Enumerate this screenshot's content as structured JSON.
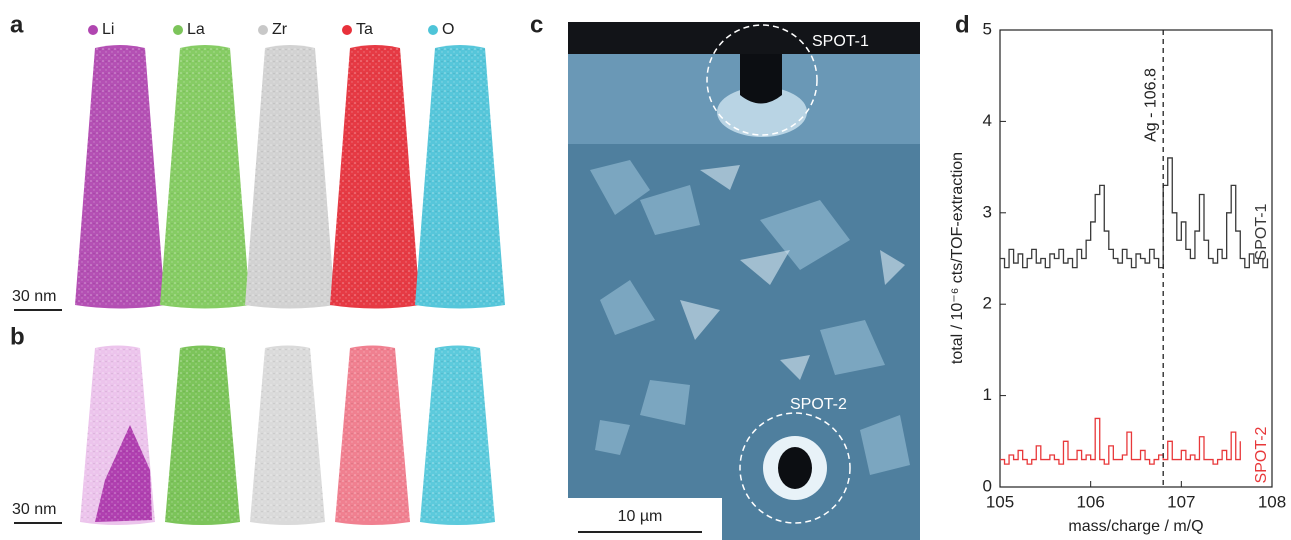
{
  "panels": {
    "a": {
      "label": "a",
      "elements": [
        "Li",
        "La",
        "Zr",
        "Ta",
        "O"
      ],
      "scale_bar": "30 nm"
    },
    "b": {
      "label": "b",
      "scale_bar": "30 nm"
    },
    "c": {
      "label": "c",
      "spots": [
        "SPOT-1",
        "SPOT-2"
      ],
      "scale_bar": "10 µm"
    },
    "d": {
      "label": "d"
    }
  },
  "chart_data": {
    "type": "line",
    "x_label": "mass/charge / m/Q",
    "y_label": "total / 10⁻⁶ cts/TOF-extraction",
    "annotation": "Ag - 106.8",
    "marker_x": 106.8,
    "x": [
      105.0,
      105.05,
      105.1,
      105.15,
      105.2,
      105.25,
      105.3,
      105.35,
      105.4,
      105.45,
      105.5,
      105.55,
      105.6,
      105.65,
      105.7,
      105.75,
      105.8,
      105.85,
      105.9,
      105.95,
      106.0,
      106.05,
      106.1,
      106.15,
      106.2,
      106.25,
      106.3,
      106.35,
      106.4,
      106.45,
      106.5,
      106.55,
      106.6,
      106.65,
      106.7,
      106.75,
      106.8,
      106.85,
      106.9,
      106.95,
      107.0,
      107.05,
      107.1,
      107.15,
      107.2,
      107.25,
      107.3,
      107.35,
      107.4,
      107.45,
      107.5,
      107.55,
      107.6,
      107.65,
      107.7,
      107.75,
      107.8,
      107.85,
      107.9,
      107.95
    ],
    "series": [
      {
        "name": "SPOT-1",
        "color": "#3a3a3a",
        "values": [
          2.5,
          2.4,
          2.6,
          2.45,
          2.55,
          2.4,
          2.5,
          2.6,
          2.45,
          2.5,
          2.4,
          2.55,
          2.5,
          2.6,
          2.45,
          2.5,
          2.4,
          2.6,
          2.5,
          2.7,
          2.9,
          3.2,
          3.3,
          2.8,
          2.6,
          2.5,
          2.45,
          2.6,
          2.5,
          2.4,
          2.55,
          2.5,
          2.45,
          2.6,
          2.5,
          2.4,
          3.3,
          3.6,
          3.0,
          2.7,
          2.9,
          2.6,
          2.5,
          2.8,
          3.2,
          2.7,
          2.5,
          2.45,
          2.6,
          2.5,
          3.0,
          3.3,
          2.8,
          2.5,
          2.4,
          2.55,
          2.45,
          2.5,
          2.4,
          2.5
        ]
      },
      {
        "name": "SPOT-2",
        "color": "#e8383a",
        "values": [
          0.3,
          0.25,
          0.35,
          0.3,
          0.4,
          0.3,
          0.25,
          0.3,
          0.45,
          0.3,
          0.3,
          0.35,
          0.3,
          0.25,
          0.5,
          0.3,
          0.3,
          0.4,
          0.3,
          0.35,
          0.3,
          0.75,
          0.3,
          0.25,
          0.45,
          0.3,
          0.3,
          0.35,
          0.6,
          0.3,
          0.3,
          0.4,
          0.3,
          0.25,
          0.3,
          0.35,
          0.3,
          0.5,
          0.3,
          0.3,
          0.4,
          0.3,
          0.35,
          0.3,
          0.55,
          0.3,
          0.3,
          0.25,
          0.3,
          0.4,
          0.3,
          0.6,
          0.3,
          0.5,
          null,
          null,
          null,
          null,
          null,
          null
        ]
      }
    ],
    "xlim": [
      105,
      108
    ],
    "xticks": [
      105,
      106,
      107,
      108
    ],
    "ylim": [
      0,
      5
    ],
    "yticks": [
      0,
      1,
      2,
      3,
      4,
      5
    ]
  }
}
